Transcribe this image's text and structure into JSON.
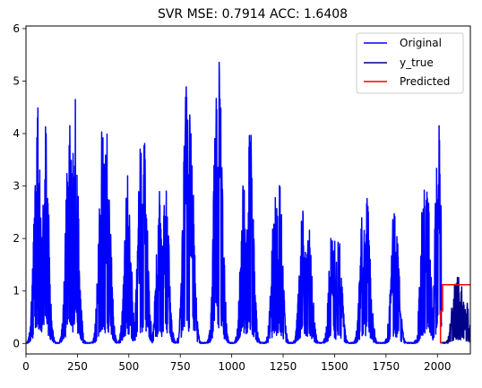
{
  "chart_data": {
    "type": "line",
    "title": "SVR MSE: 0.7914 ACC: 1.6408",
    "xlabel": "",
    "ylabel": "",
    "xlim": [
      0,
      2160
    ],
    "ylim": [
      -0.2,
      6.05
    ],
    "xticks": [
      "0",
      "250",
      "500",
      "750",
      "1000",
      "1250",
      "1500",
      "1750",
      "2000"
    ],
    "yticks": [
      "0",
      "1",
      "2",
      "3",
      "4",
      "5",
      "6"
    ],
    "grid": false,
    "legend_position": "top-right",
    "series": [
      {
        "name": "Original",
        "color": "#0000ff",
        "x_range": [
          0,
          2020
        ],
        "peaks": [
          {
            "x": 55,
            "y": 4.65
          },
          {
            "x": 95,
            "y": 4.15
          },
          {
            "x": 210,
            "y": 4.45
          },
          {
            "x": 240,
            "y": 4.65
          },
          {
            "x": 370,
            "y": 4.2
          },
          {
            "x": 395,
            "y": 4.25
          },
          {
            "x": 495,
            "y": 3.2
          },
          {
            "x": 560,
            "y": 3.9
          },
          {
            "x": 575,
            "y": 4.0
          },
          {
            "x": 650,
            "y": 2.9
          },
          {
            "x": 680,
            "y": 3.0
          },
          {
            "x": 780,
            "y": 4.9
          },
          {
            "x": 800,
            "y": 4.5
          },
          {
            "x": 930,
            "y": 5.75
          },
          {
            "x": 940,
            "y": 5.7
          },
          {
            "x": 1060,
            "y": 3.5
          },
          {
            "x": 1090,
            "y": 4.1
          },
          {
            "x": 1210,
            "y": 2.8
          },
          {
            "x": 1230,
            "y": 3.3
          },
          {
            "x": 1345,
            "y": 2.55
          },
          {
            "x": 1375,
            "y": 2.3
          },
          {
            "x": 1490,
            "y": 2.5
          },
          {
            "x": 1520,
            "y": 2.0
          },
          {
            "x": 1640,
            "y": 2.8
          },
          {
            "x": 1660,
            "y": 2.9
          },
          {
            "x": 1790,
            "y": 2.7
          },
          {
            "x": 1800,
            "y": 2.1
          },
          {
            "x": 1935,
            "y": 3.2
          },
          {
            "x": 1950,
            "y": 2.95
          },
          {
            "x": 2005,
            "y": 4.25
          }
        ]
      },
      {
        "name": "y_true",
        "color": "#00008b",
        "x_range": [
          2020,
          2160
        ],
        "peaks": [
          {
            "x": 2085,
            "y": 1.2
          },
          {
            "x": 2100,
            "y": 1.28
          },
          {
            "x": 2115,
            "y": 1.1
          },
          {
            "x": 2140,
            "y": 0.85
          }
        ]
      },
      {
        "name": "Predicted",
        "color": "#ff0000",
        "x": [
          2015,
          2015,
          2025,
          2025,
          2160
        ],
        "y": [
          0.0,
          0.62,
          0.62,
          1.12,
          1.12
        ]
      }
    ]
  }
}
